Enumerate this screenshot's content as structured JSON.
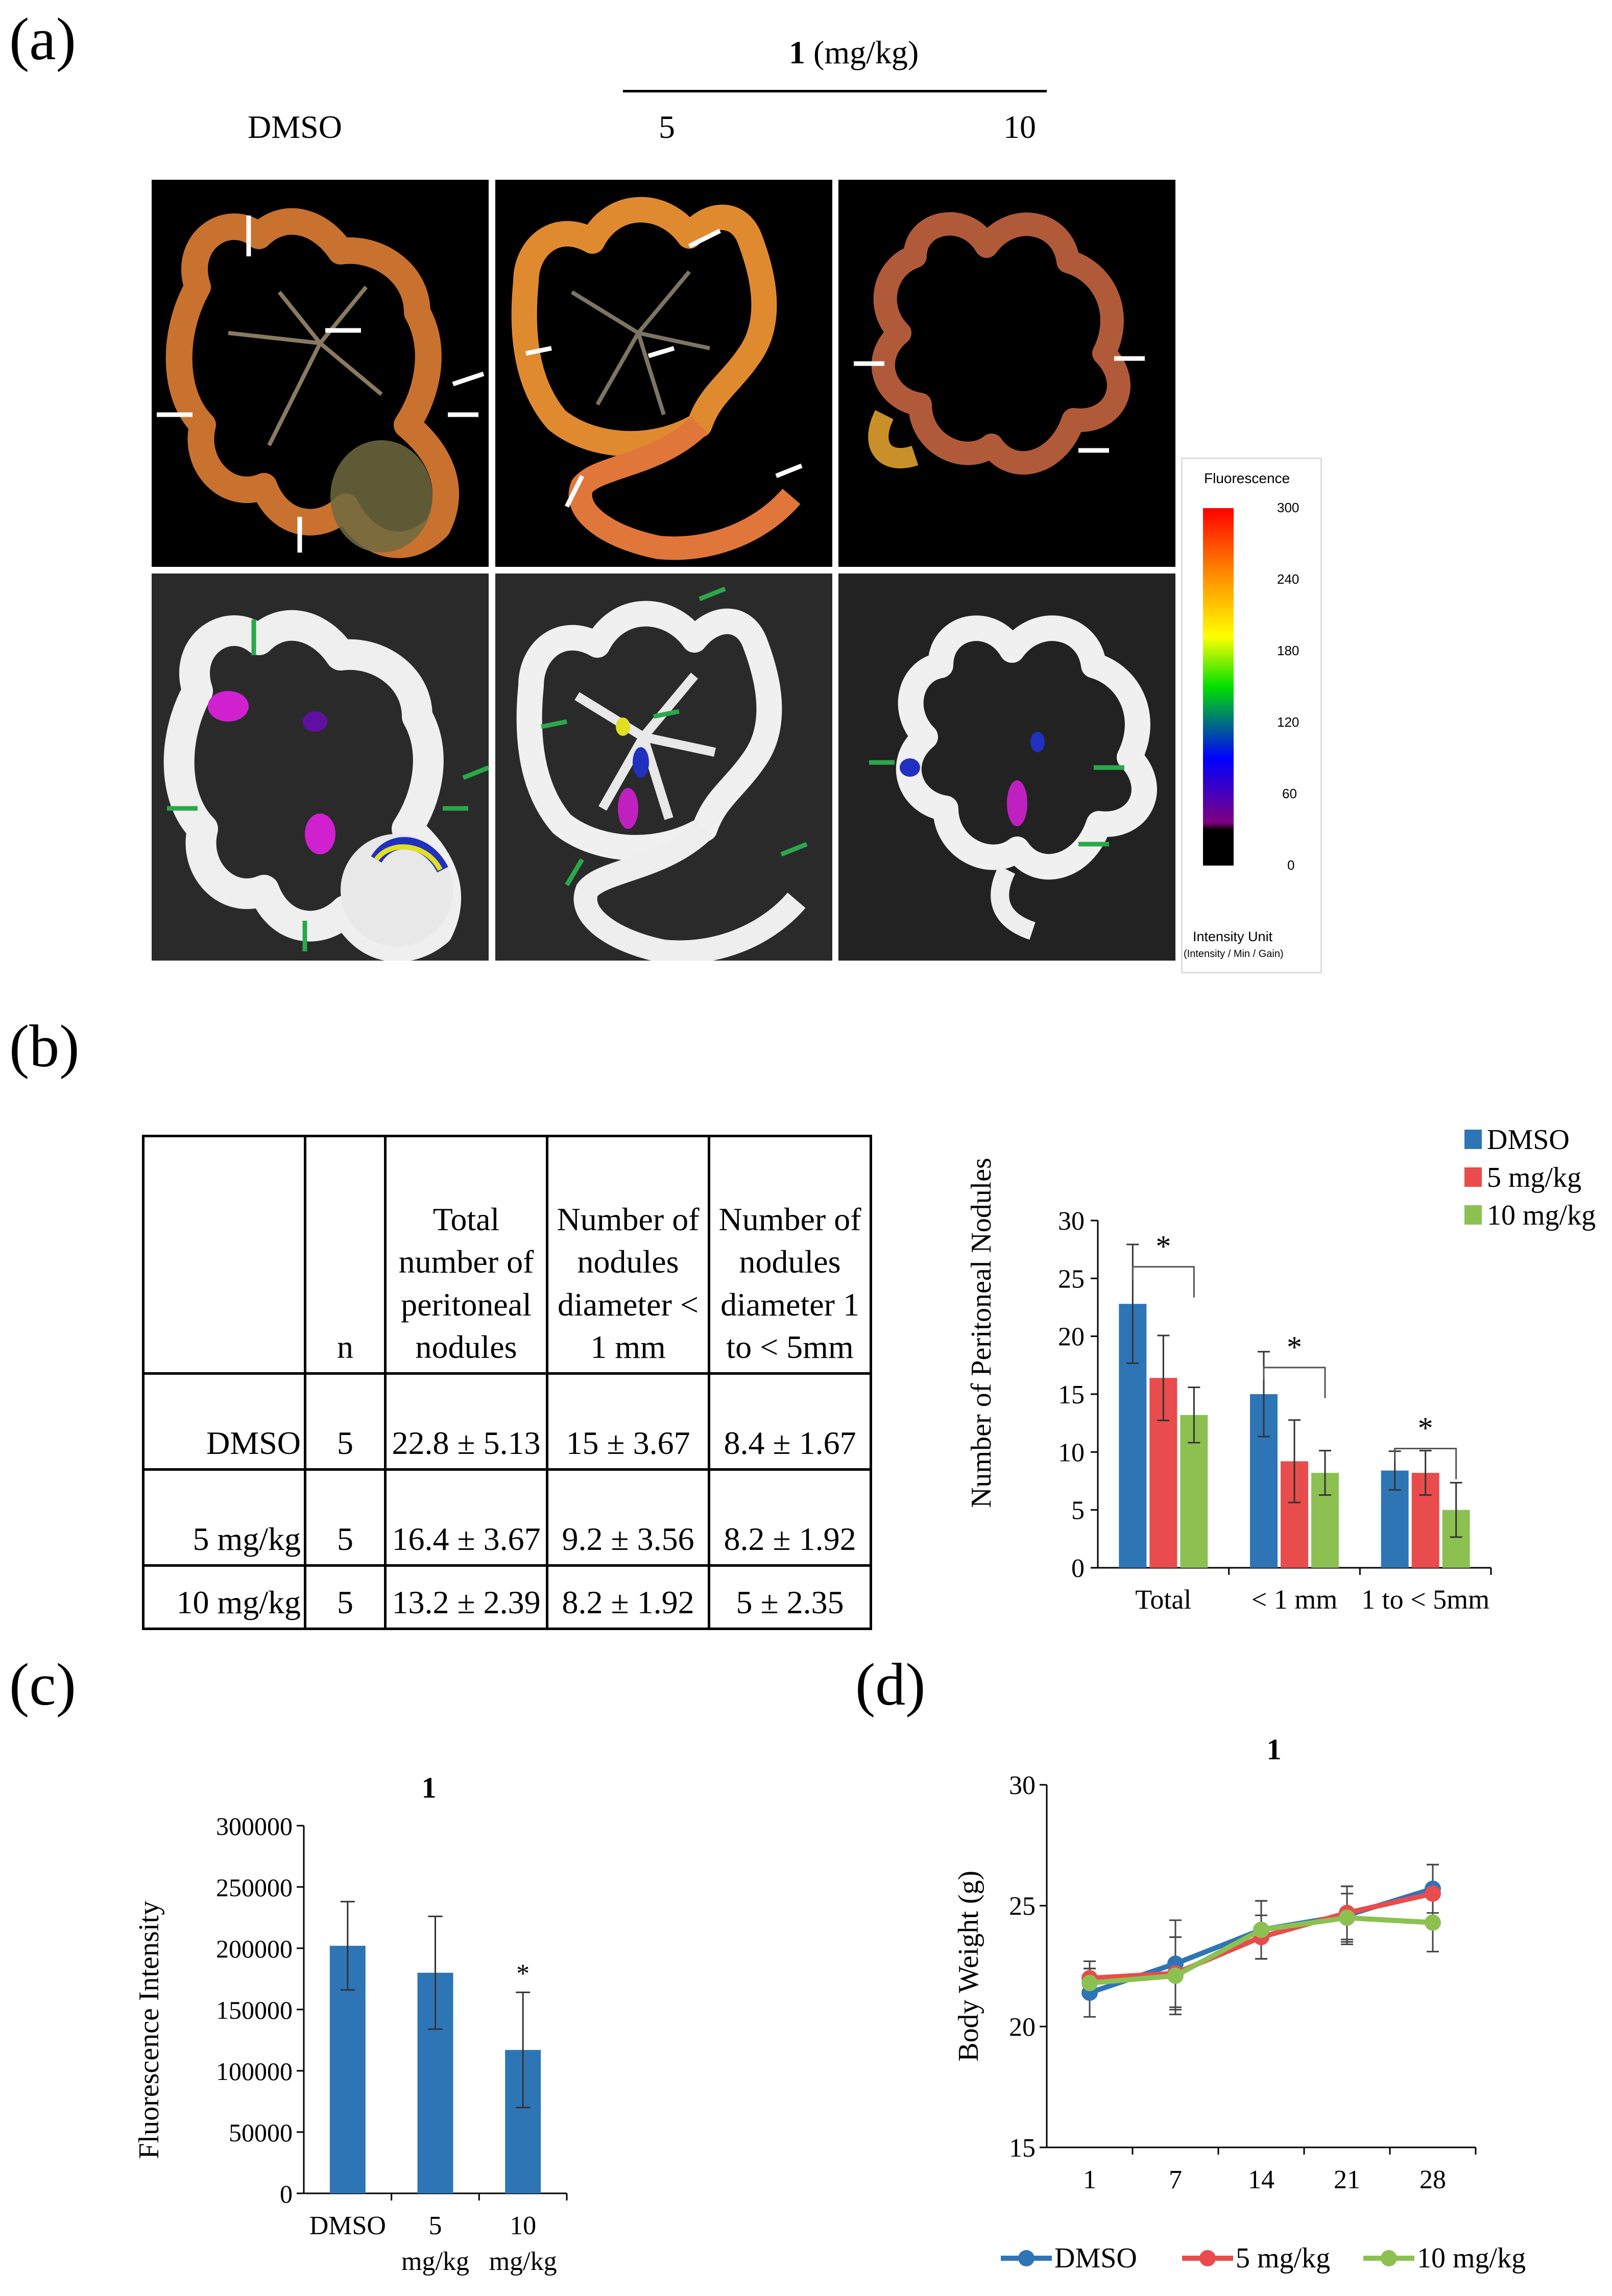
{
  "panel_a": {
    "label": "(a)",
    "compound_header": {
      "compound": "1",
      "unit": " (mg/kg)"
    },
    "columns": [
      "DMSO",
      "5",
      "10"
    ],
    "scale": {
      "title": "Fluorescence",
      "ticks": [
        "300",
        "240",
        "180",
        "120",
        "60",
        "0"
      ],
      "unit_line1": "Intensity Unit",
      "unit_line2": "(Intensity / Min / Gain)"
    }
  },
  "panel_b": {
    "label": "(b)",
    "table": {
      "headers": [
        "",
        "n",
        "Total number of peritoneal nodules",
        "Number of nodules diameter < 1 mm",
        "Number of nodules diameter 1 to < 5mm"
      ],
      "rows": [
        [
          "DMSO",
          "5",
          "22.8 ±  5.13",
          "15 ± 3.67",
          "8.4 ± 1.67"
        ],
        [
          "5 mg/kg",
          "5",
          "16.4 ±  3.67",
          "9.2 ± 3.56",
          "8.2 ± 1.92"
        ],
        [
          "10 mg/kg",
          "5",
          "13.2 ± 2.39",
          "8.2 ± 1.92",
          "5 ± 2.35"
        ]
      ]
    }
  },
  "panel_c": {
    "label": "(c)"
  },
  "panel_d": {
    "label": "(d)"
  },
  "chart_data": [
    {
      "type": "bar",
      "categories": [
        "Total",
        "< 1 mm",
        "1 to < 5mm"
      ],
      "series": [
        {
          "name": "DMSO",
          "values": [
            22.8,
            15,
            8.4
          ],
          "errors": [
            5.13,
            3.67,
            1.67
          ],
          "color": "#2e75b6"
        },
        {
          "name": "5 mg/kg",
          "values": [
            16.4,
            9.2,
            8.2
          ],
          "errors": [
            3.67,
            3.56,
            1.92
          ],
          "color": "#e84c4c"
        },
        {
          "name": "10 mg/kg",
          "values": [
            13.2,
            8.2,
            5
          ],
          "errors": [
            2.39,
            1.92,
            2.35
          ],
          "color": "#8cc152"
        }
      ],
      "ylabel": "Number of Peritoneal Nodules",
      "ylim": [
        0,
        30
      ],
      "yticks": [
        "0",
        "5",
        "10",
        "15",
        "20",
        "25",
        "30"
      ],
      "legend": "top-right",
      "annotations": [
        "*",
        "*",
        "*"
      ]
    },
    {
      "type": "bar",
      "title": "1",
      "categories": [
        "DMSO",
        "5 mg/kg",
        "10 mg/kg"
      ],
      "category_lines": [
        [
          "DMSO"
        ],
        [
          "5",
          "mg/kg"
        ],
        [
          "10",
          "mg/kg"
        ]
      ],
      "values": [
        202000,
        180000,
        117000
      ],
      "errors": [
        36000,
        46000,
        47000
      ],
      "color": "#2e75b6",
      "ylabel": "Fluorescence Intensity",
      "ylim": [
        0,
        300000
      ],
      "yticks": [
        "0",
        "50000",
        "100000",
        "150000",
        "200000",
        "250000",
        "300000"
      ],
      "annotations": [
        "*"
      ]
    },
    {
      "type": "line",
      "title": "1",
      "x": [
        "1",
        "7",
        "14",
        "21",
        "28"
      ],
      "series": [
        {
          "name": "DMSO",
          "values": [
            21.4,
            22.6,
            24.0,
            24.6,
            25.7
          ],
          "errors": [
            1.0,
            1.8,
            1.2,
            1.2,
            1.0
          ],
          "color": "#2e75b6"
        },
        {
          "name": "5 mg/kg",
          "values": [
            22.0,
            22.2,
            23.7,
            24.7,
            25.5
          ],
          "errors": [
            0.7,
            1.5,
            0.9,
            1.1,
            1.2
          ],
          "color": "#e84c4c"
        },
        {
          "name": "10 mg/kg",
          "values": [
            21.8,
            22.1,
            24.0,
            24.5,
            24.3
          ],
          "errors": [
            0.6,
            1.6,
            1.2,
            1.0,
            1.2
          ],
          "color": "#8cc152"
        }
      ],
      "ylabel": "Body Weight (g)",
      "ylim": [
        15,
        30
      ],
      "yticks": [
        "15",
        "20",
        "25",
        "30"
      ],
      "legend": "bottom"
    }
  ]
}
